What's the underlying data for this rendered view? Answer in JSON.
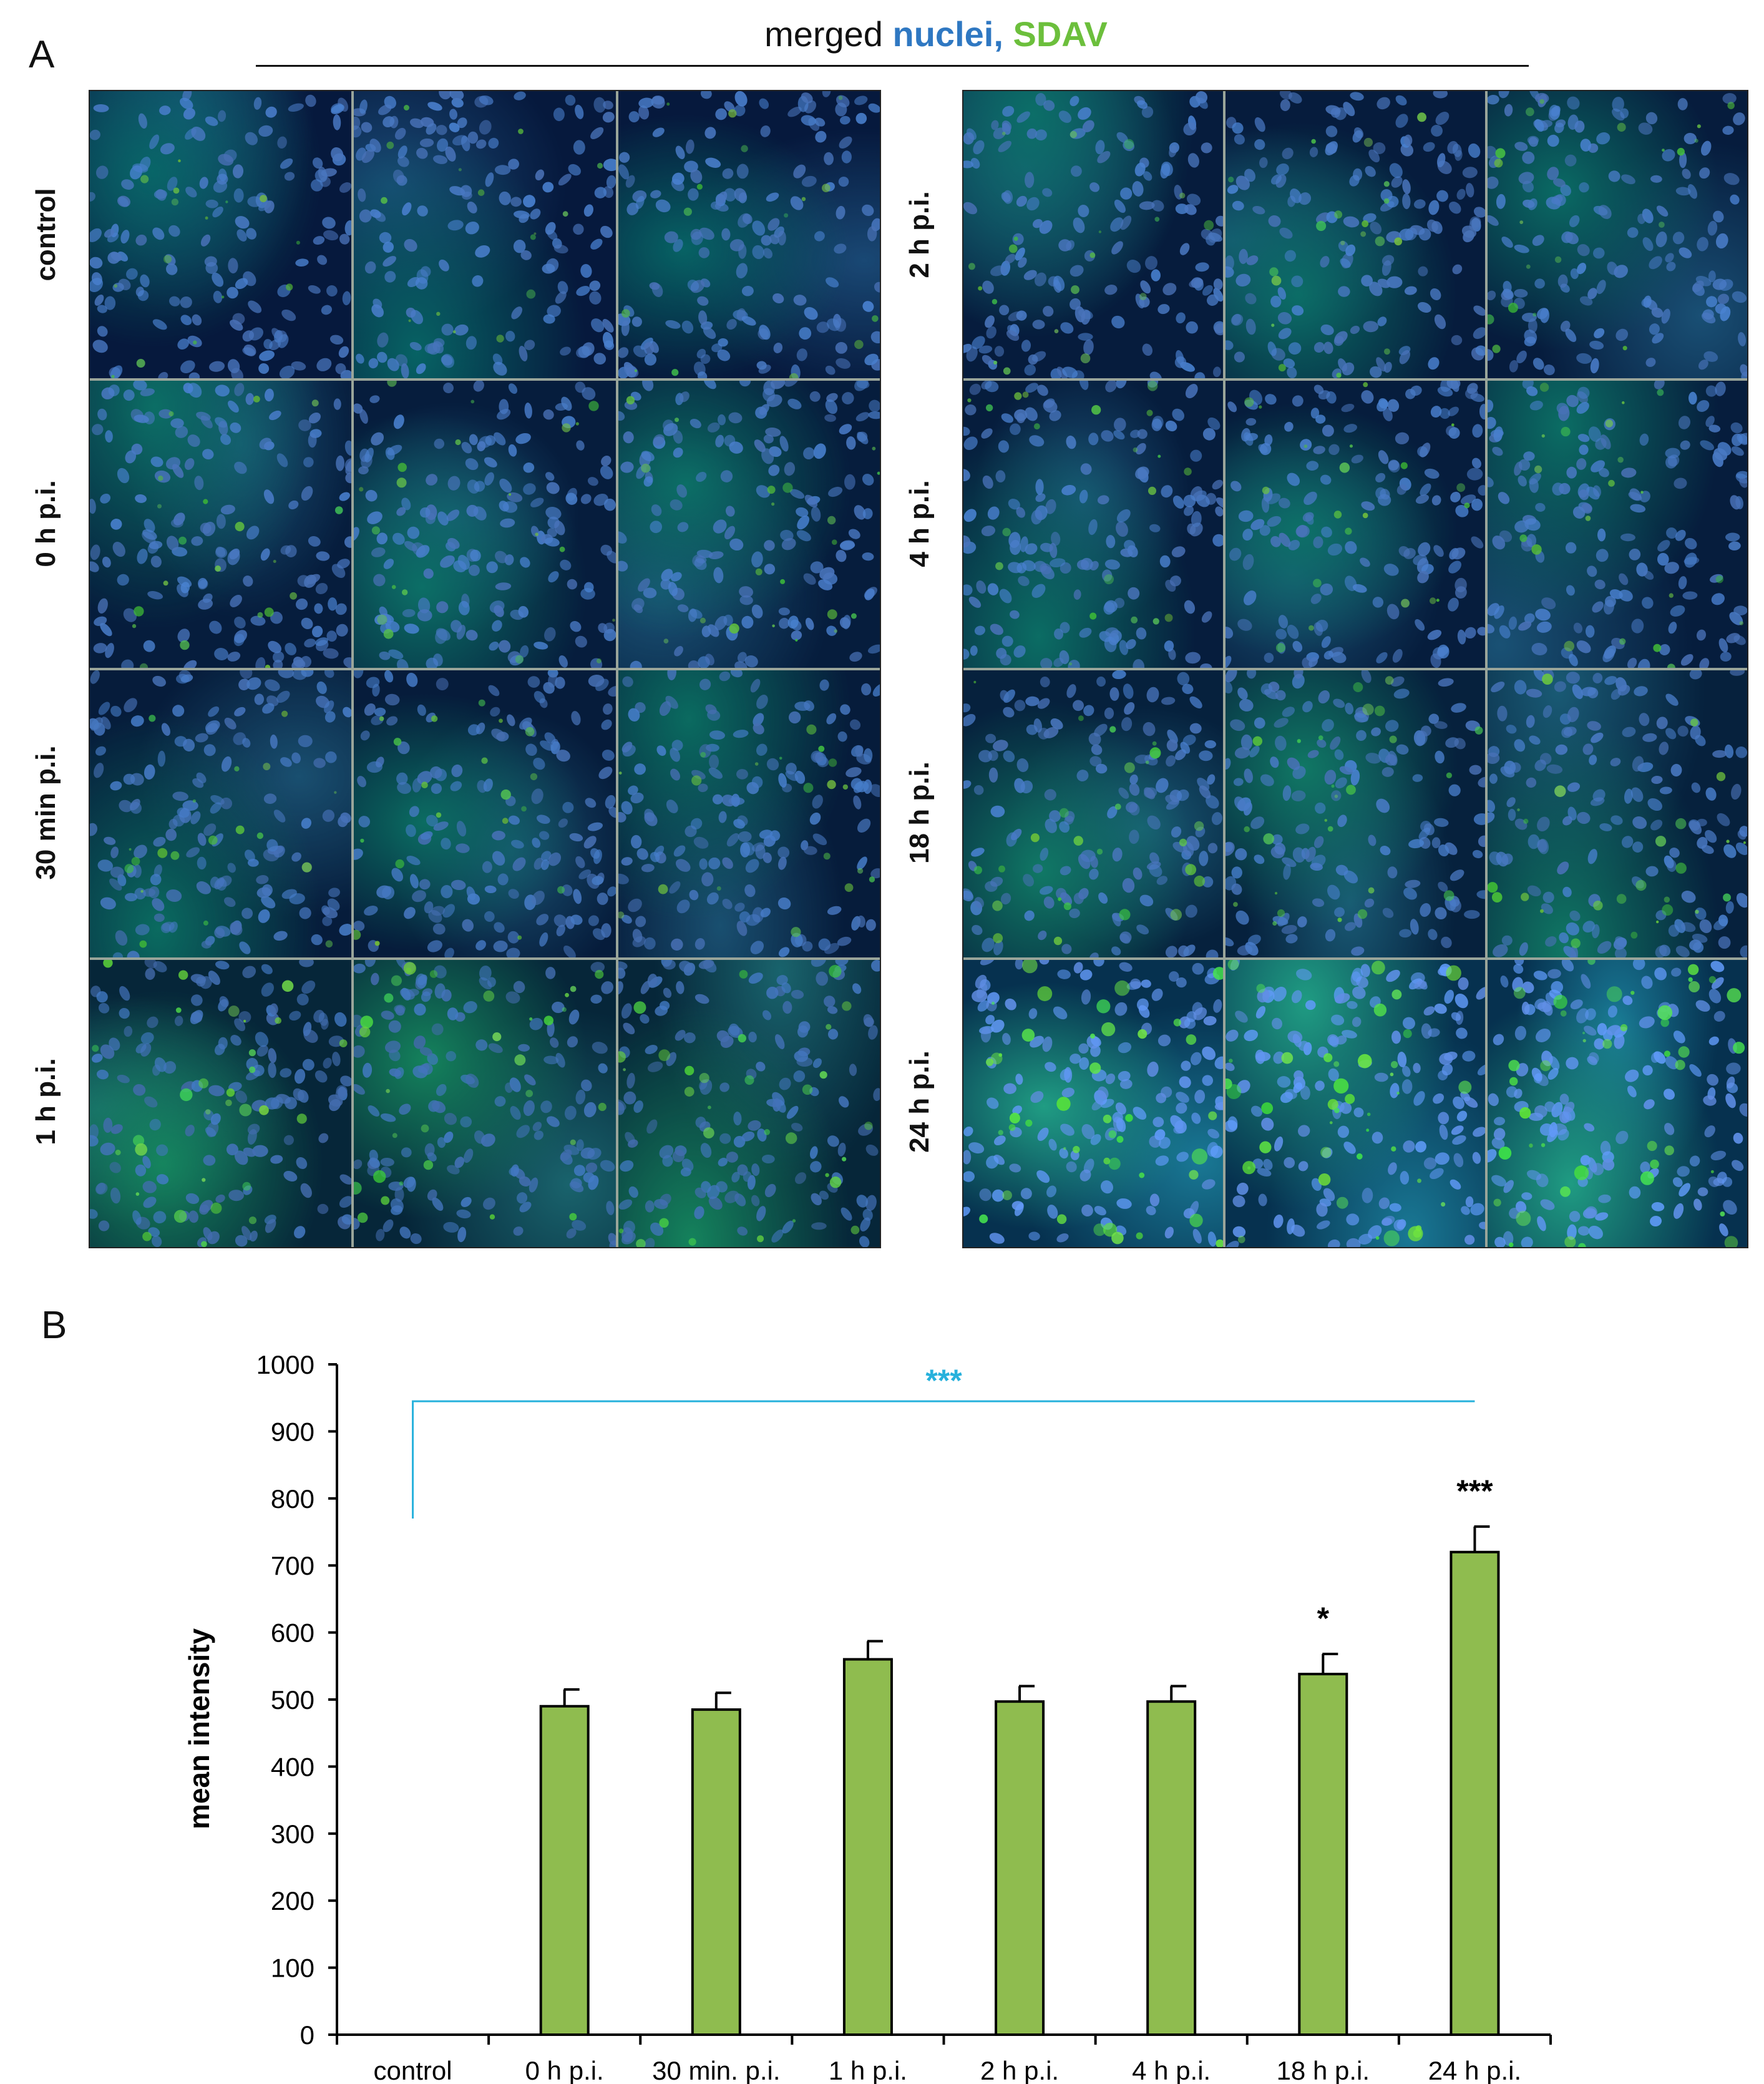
{
  "panel_a": {
    "letter": "A",
    "title_prefix": "merged",
    "title_nuclei": "nuclei,",
    "title_sdav": "SDAV",
    "left_rows": [
      {
        "label": "control",
        "green_level": 0.18,
        "blue_level": 0.55
      },
      {
        "label": "0 h p.i.",
        "green_level": 0.3,
        "blue_level": 0.55
      },
      {
        "label": "30 min p.i.",
        "green_level": 0.28,
        "blue_level": 0.5
      },
      {
        "label": "1 h p.i.",
        "green_level": 0.55,
        "blue_level": 0.45
      }
    ],
    "right_rows": [
      {
        "label": "2 h p.i.",
        "green_level": 0.28,
        "blue_level": 0.55
      },
      {
        "label": "4 h p.i.",
        "green_level": 0.3,
        "blue_level": 0.55
      },
      {
        "label": "18 h p.i.",
        "green_level": 0.42,
        "blue_level": 0.55
      },
      {
        "label": "24 h p.i.",
        "green_level": 0.85,
        "blue_level": 0.95
      }
    ]
  },
  "panel_b": {
    "letter": "B",
    "bracket_label": "***"
  },
  "colors": {
    "bar": "#8fbc4f",
    "bracket": "#27b1dc",
    "nuclei": "#2f78c2",
    "sdav": "#6cbf3c"
  },
  "chart_data": {
    "type": "bar",
    "categories": [
      "control",
      "0 h p.i.",
      "30 min. p.i.",
      "1 h p.i.",
      "2 h p.i.",
      "4 h p.i.",
      "18 h p.i.",
      "24 h p.i."
    ],
    "values": [
      0,
      490,
      485,
      560,
      497,
      497,
      538,
      720
    ],
    "errors": [
      0,
      25,
      25,
      27,
      23,
      23,
      30,
      38
    ],
    "significance": [
      "",
      "",
      "",
      "",
      "",
      "",
      "*",
      "***"
    ],
    "ylabel": "mean intensity",
    "xlabel": "",
    "ylim": [
      0,
      1000
    ],
    "yticks": [
      0,
      100,
      200,
      300,
      400,
      500,
      600,
      700,
      800,
      900,
      1000
    ],
    "grid": false,
    "bracket": {
      "from": "control",
      "to": "24 h p.i.",
      "label": "***",
      "level": 945
    }
  }
}
